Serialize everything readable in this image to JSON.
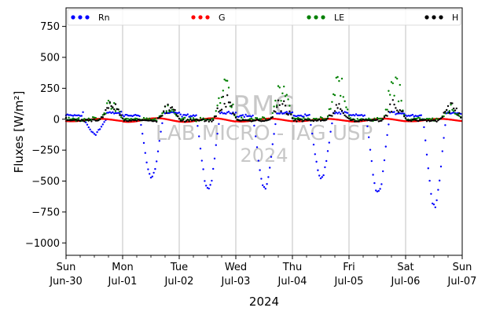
{
  "chart_data": {
    "type": "scatter",
    "ylabel": "Fluxes [W/m²]",
    "xlabel": "2024",
    "ylim": [
      -1100,
      900
    ],
    "yticks": [
      750,
      500,
      250,
      0,
      -250,
      -500,
      -750,
      -1000
    ],
    "x_range": [
      "2024-06-30",
      "2024-07-07"
    ],
    "xticks": [
      {
        "date": "2024-06-30",
        "day": "Sun",
        "label": "Jun-30"
      },
      {
        "date": "2024-07-01",
        "day": "Mon",
        "label": "Jul-01"
      },
      {
        "date": "2024-07-02",
        "day": "Tue",
        "label": "Jul-02"
      },
      {
        "date": "2024-07-03",
        "day": "Wed",
        "label": "Jul-03"
      },
      {
        "date": "2024-07-04",
        "day": "Thu",
        "label": "Jul-04"
      },
      {
        "date": "2024-07-05",
        "day": "Fri",
        "label": "Jul-05"
      },
      {
        "date": "2024-07-06",
        "day": "Sat",
        "label": "Jul-06"
      },
      {
        "date": "2024-07-07",
        "day": "Sun",
        "label": "Jul-07"
      }
    ],
    "grid": "vertical",
    "legend_placement": "top",
    "watermark": [
      "RMG",
      "LAB MICRO - IAG USP",
      "2024"
    ],
    "series": [
      {
        "name": "Rn",
        "color": "#0000ff",
        "daily_min": [
          -110,
          -470,
          -570,
          -560,
          -480,
          -600,
          -690
        ],
        "night_level": -20
      },
      {
        "name": "G",
        "color": "#ff0000",
        "daily_amp": [
          10,
          15,
          15,
          12,
          10,
          12,
          10
        ],
        "night_level": -15
      },
      {
        "name": "LE",
        "color": "#008000",
        "daily_max": [
          180,
          120,
          350,
          320,
          400,
          400,
          130
        ],
        "night_level": 0
      },
      {
        "name": "H",
        "color": "#000000",
        "daily_max": [
          210,
          150,
          240,
          200,
          150,
          200,
          150
        ],
        "night_level": -10
      }
    ]
  }
}
